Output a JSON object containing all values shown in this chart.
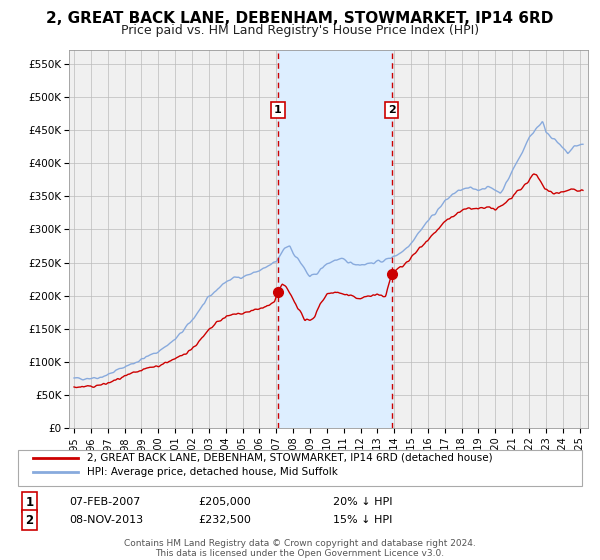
{
  "title": "2, GREAT BACK LANE, DEBENHAM, STOWMARKET, IP14 6RD",
  "subtitle": "Price paid vs. HM Land Registry's House Price Index (HPI)",
  "ylim": [
    0,
    570000
  ],
  "yticks": [
    0,
    50000,
    100000,
    150000,
    200000,
    250000,
    300000,
    350000,
    400000,
    450000,
    500000,
    550000
  ],
  "ytick_labels": [
    "£0",
    "£50K",
    "£100K",
    "£150K",
    "£200K",
    "£250K",
    "£300K",
    "£350K",
    "£400K",
    "£450K",
    "£500K",
    "£550K"
  ],
  "xlim_start": 1994.7,
  "xlim_end": 2025.5,
  "xtick_years": [
    1995,
    1996,
    1997,
    1998,
    1999,
    2000,
    2001,
    2002,
    2003,
    2004,
    2005,
    2006,
    2007,
    2008,
    2009,
    2010,
    2011,
    2012,
    2013,
    2014,
    2015,
    2016,
    2017,
    2018,
    2019,
    2020,
    2021,
    2022,
    2023,
    2024,
    2025
  ],
  "sale1_date": 2007.1,
  "sale1_price": 205000,
  "sale2_date": 2013.85,
  "sale2_price": 232500,
  "sale_color": "#cc0000",
  "hpi_color": "#88aadd",
  "shading_color": "#ddeeff",
  "grid_color": "#bbbbbb",
  "bg_color": "#ffffff",
  "plot_bg_color": "#f0f0f0",
  "legend_line1": "2, GREAT BACK LANE, DEBENHAM, STOWMARKET, IP14 6RD (detached house)",
  "legend_line2": "HPI: Average price, detached house, Mid Suffolk",
  "annot1_date": "07-FEB-2007",
  "annot1_price": "£205,000",
  "annot1_hpi": "20% ↓ HPI",
  "annot2_date": "08-NOV-2013",
  "annot2_price": "£232,500",
  "annot2_hpi": "15% ↓ HPI",
  "footer1": "Contains HM Land Registry data © Crown copyright and database right 2024.",
  "footer2": "This data is licensed under the Open Government Licence v3.0."
}
